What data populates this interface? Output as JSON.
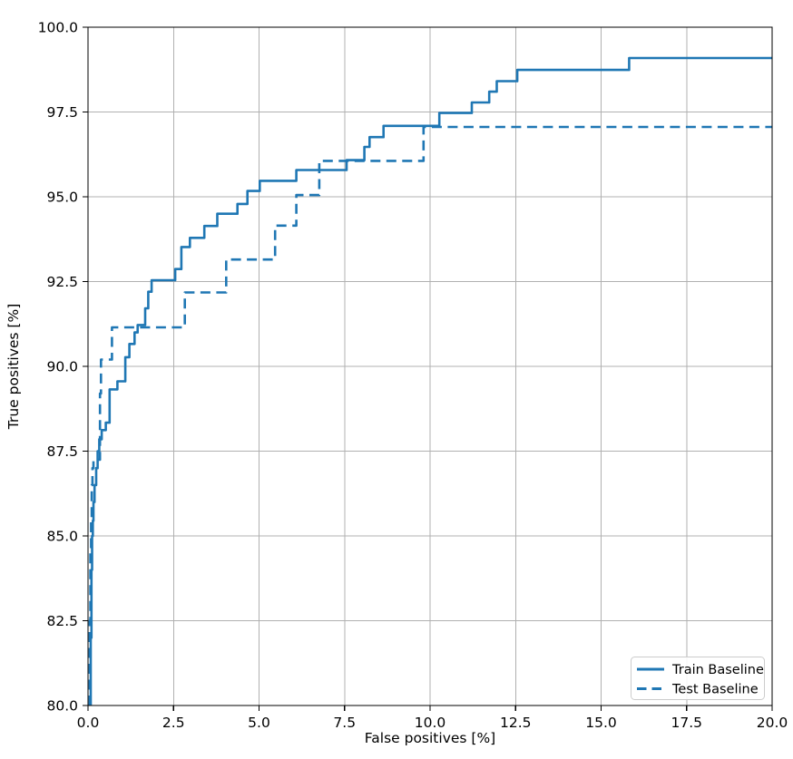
{
  "chart_data": {
    "type": "line",
    "subtype": "step-roc",
    "title": "",
    "xlabel": "False positives [%]",
    "ylabel": "True positives [%]",
    "xlim": [
      0,
      20
    ],
    "ylim": [
      80,
      100
    ],
    "xticks": [
      0.0,
      2.5,
      5.0,
      7.5,
      10.0,
      12.5,
      15.0,
      17.5,
      20.0
    ],
    "yticks": [
      80.0,
      82.5,
      85.0,
      87.5,
      90.0,
      92.5,
      95.0,
      97.5,
      100.0
    ],
    "grid": true,
    "grid_color": "#b0b0b0",
    "spine_color": "#000000",
    "line_color": "#1f77b4",
    "legend_position": "lower right",
    "series": [
      {
        "name": "Train Baseline",
        "style": "solid",
        "color": "#1f77b4",
        "points": [
          [
            0.08,
            80.0
          ],
          [
            0.08,
            82.0
          ],
          [
            0.1,
            82.0
          ],
          [
            0.1,
            84.0
          ],
          [
            0.12,
            84.0
          ],
          [
            0.12,
            85.0
          ],
          [
            0.14,
            85.0
          ],
          [
            0.14,
            85.45
          ],
          [
            0.16,
            85.45
          ],
          [
            0.16,
            86.0
          ],
          [
            0.19,
            86.0
          ],
          [
            0.19,
            86.5
          ],
          [
            0.24,
            86.5
          ],
          [
            0.24,
            87.0
          ],
          [
            0.28,
            87.0
          ],
          [
            0.28,
            87.5
          ],
          [
            0.33,
            87.5
          ],
          [
            0.33,
            87.85
          ],
          [
            0.4,
            87.85
          ],
          [
            0.4,
            88.12
          ],
          [
            0.52,
            88.12
          ],
          [
            0.52,
            88.34
          ],
          [
            0.63,
            88.34
          ],
          [
            0.63,
            89.32
          ],
          [
            0.86,
            89.32
          ],
          [
            0.86,
            89.56
          ],
          [
            1.09,
            89.56
          ],
          [
            1.09,
            90.27
          ],
          [
            1.21,
            90.27
          ],
          [
            1.21,
            90.66
          ],
          [
            1.36,
            90.66
          ],
          [
            1.36,
            91.0
          ],
          [
            1.45,
            91.0
          ],
          [
            1.45,
            91.22
          ],
          [
            1.67,
            91.22
          ],
          [
            1.67,
            91.71
          ],
          [
            1.76,
            91.71
          ],
          [
            1.76,
            92.2
          ],
          [
            1.86,
            92.2
          ],
          [
            1.86,
            92.54
          ],
          [
            2.55,
            92.54
          ],
          [
            2.55,
            92.87
          ],
          [
            2.73,
            92.87
          ],
          [
            2.73,
            93.52
          ],
          [
            2.98,
            93.52
          ],
          [
            2.98,
            93.79
          ],
          [
            3.4,
            93.79
          ],
          [
            3.4,
            94.14
          ],
          [
            3.78,
            94.14
          ],
          [
            3.78,
            94.5
          ],
          [
            4.37,
            94.5
          ],
          [
            4.37,
            94.79
          ],
          [
            4.66,
            94.79
          ],
          [
            4.66,
            95.17
          ],
          [
            5.02,
            95.17
          ],
          [
            5.02,
            95.47
          ],
          [
            6.09,
            95.47
          ],
          [
            6.09,
            95.79
          ],
          [
            7.56,
            95.79
          ],
          [
            7.56,
            96.08
          ],
          [
            8.08,
            96.08
          ],
          [
            8.08,
            96.47
          ],
          [
            8.23,
            96.47
          ],
          [
            8.23,
            96.76
          ],
          [
            8.64,
            96.76
          ],
          [
            8.64,
            97.09
          ],
          [
            10.27,
            97.09
          ],
          [
            10.27,
            97.47
          ],
          [
            11.22,
            97.47
          ],
          [
            11.22,
            97.78
          ],
          [
            11.73,
            97.78
          ],
          [
            11.73,
            98.1
          ],
          [
            11.95,
            98.1
          ],
          [
            11.95,
            98.41
          ],
          [
            12.55,
            98.41
          ],
          [
            12.55,
            98.74
          ],
          [
            15.82,
            98.74
          ],
          [
            15.82,
            99.09
          ],
          [
            20.0,
            99.09
          ]
        ]
      },
      {
        "name": "Test Baseline",
        "style": "dashed",
        "color": "#1f77b4",
        "points": [
          [
            0.05,
            80.0
          ],
          [
            0.05,
            82.5
          ],
          [
            0.07,
            82.5
          ],
          [
            0.07,
            84.5
          ],
          [
            0.09,
            84.5
          ],
          [
            0.09,
            85.5
          ],
          [
            0.11,
            85.5
          ],
          [
            0.11,
            86.5
          ],
          [
            0.13,
            86.5
          ],
          [
            0.13,
            87.0
          ],
          [
            0.16,
            87.0
          ],
          [
            0.16,
            87.25
          ],
          [
            0.35,
            87.25
          ],
          [
            0.35,
            89.2
          ],
          [
            0.38,
            89.2
          ],
          [
            0.38,
            90.2
          ],
          [
            0.7,
            90.2
          ],
          [
            0.7,
            91.15
          ],
          [
            2.83,
            91.15
          ],
          [
            2.83,
            92.18
          ],
          [
            4.04,
            92.18
          ],
          [
            4.04,
            93.15
          ],
          [
            5.47,
            93.15
          ],
          [
            5.47,
            94.15
          ],
          [
            6.09,
            94.15
          ],
          [
            6.09,
            95.05
          ],
          [
            6.76,
            95.05
          ],
          [
            6.76,
            96.06
          ],
          [
            9.81,
            96.06
          ],
          [
            9.81,
            97.06
          ],
          [
            20.0,
            97.06
          ]
        ]
      }
    ]
  }
}
